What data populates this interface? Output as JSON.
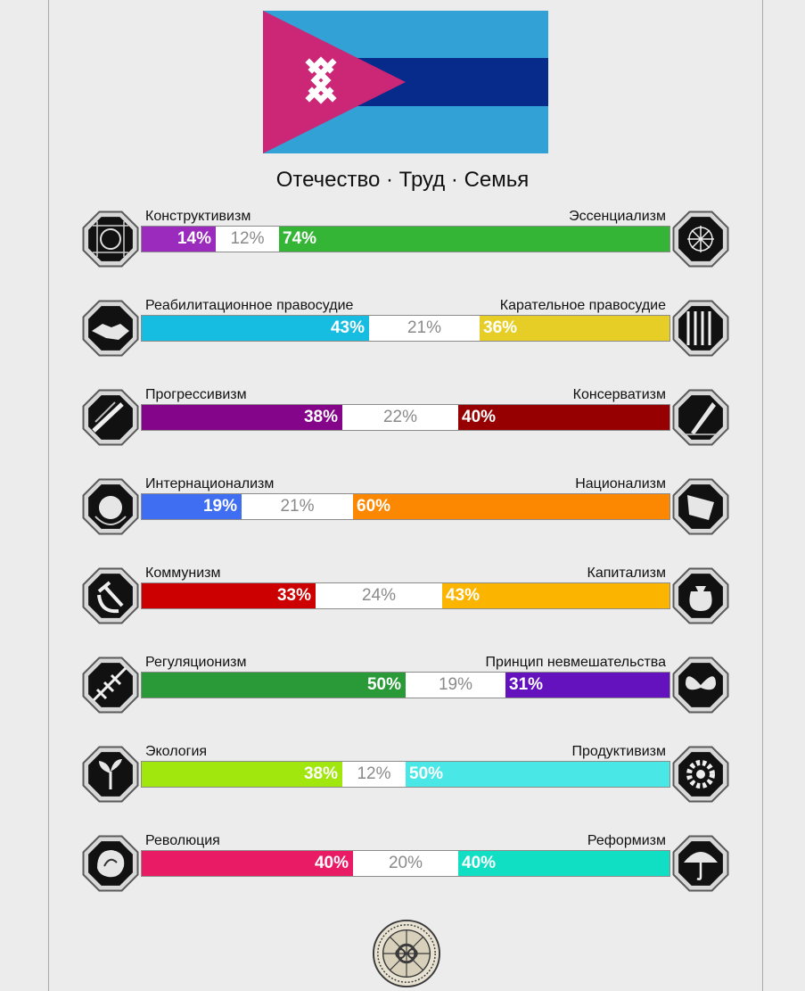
{
  "motto": "Отечество · Труд · Семья",
  "flag": {
    "colors": {
      "triangle": "#cc2676",
      "stripe_outer": "#32a1d6",
      "stripe_middle": "#062b8b",
      "symbol": "#ffffff"
    },
    "symbol_icon": "crossed-chevrons-icon"
  },
  "axes": [
    {
      "left_label": "Конструктивизм",
      "right_label": "Эссенциализм",
      "left_pct": 14,
      "center_pct": 12,
      "right_pct": 74,
      "left_text": "14%",
      "center_text": "12%",
      "right_text": "74%",
      "left_color": "#9a2bbd",
      "right_color": "#35b535",
      "left_icon": "constructivism-icon",
      "right_icon": "essentialism-icon"
    },
    {
      "left_label": "Реабилитационное правосудие",
      "right_label": "Карательное правосудие",
      "left_pct": 43,
      "center_pct": 21,
      "right_pct": 36,
      "left_text": "43%",
      "center_text": "21%",
      "right_text": "36%",
      "left_color": "#16bde0",
      "right_color": "#e6ce27",
      "left_icon": "handshake-icon",
      "right_icon": "prison-bars-icon"
    },
    {
      "left_label": "Прогрессивизм",
      "right_label": "Консерватизм",
      "left_pct": 38,
      "center_pct": 22,
      "right_pct": 40,
      "left_text": "38%",
      "center_text": "22%",
      "right_text": "40%",
      "left_color": "#85058a",
      "right_color": "#970000",
      "left_icon": "progressivism-icon",
      "right_icon": "quill-icon"
    },
    {
      "left_label": "Интернационализм",
      "right_label": "Национализм",
      "left_pct": 19,
      "center_pct": 21,
      "right_pct": 60,
      "left_text": "19%",
      "center_text": "21%",
      "right_text": "60%",
      "left_color": "#3f6ef2",
      "right_color": "#fc8700",
      "left_icon": "globe-icon",
      "right_icon": "flag-icon"
    },
    {
      "left_label": "Коммунизм",
      "right_label": "Капитализм",
      "left_pct": 33,
      "center_pct": 24,
      "right_pct": 43,
      "left_text": "33%",
      "center_text": "24%",
      "right_text": "43%",
      "left_color": "#cc0000",
      "right_color": "#fbb400",
      "left_icon": "hammer-sickle-icon",
      "right_icon": "money-bag-icon"
    },
    {
      "left_label": "Регуляционизм",
      "right_label": "Принцип невмешательства",
      "left_pct": 50,
      "center_pct": 19,
      "right_pct": 31,
      "left_text": "50%",
      "center_text": "19%",
      "right_text": "31%",
      "left_color": "#2a9a38",
      "right_color": "#6412bd",
      "left_icon": "regulation-icon",
      "right_icon": "butterfly-icon"
    },
    {
      "left_label": "Экология",
      "right_label": "Продуктивизм",
      "left_pct": 38,
      "center_pct": 12,
      "right_pct": 50,
      "left_text": "38%",
      "center_text": "12%",
      "right_text": "50%",
      "left_color": "#a1e60c",
      "right_color": "#4ae7e7",
      "left_icon": "sprout-icon",
      "right_icon": "gear-icon"
    },
    {
      "left_label": "Революция",
      "right_label": "Реформизм",
      "left_pct": 40,
      "center_pct": 20,
      "right_pct": 40,
      "left_text": "40%",
      "center_text": "20%",
      "right_text": "40%",
      "left_color": "#ea1b65",
      "right_color": "#10dfc3",
      "left_icon": "rose-icon",
      "right_icon": "umbrella-icon"
    }
  ],
  "footer_icon": "seal-icon"
}
